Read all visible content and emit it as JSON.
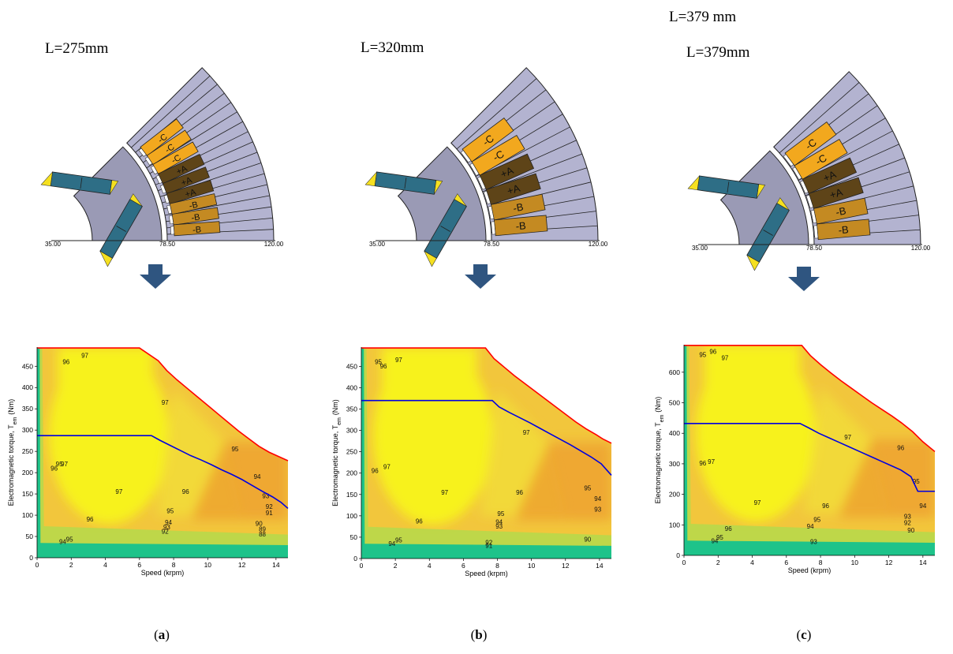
{
  "page": {
    "top_note": "L=379 mm"
  },
  "colors": {
    "rotor": "#9a9ab5",
    "stator": "#b3b3d0",
    "magnet": "#2e6e86",
    "magnet_tip": "#f5e020",
    "phase_C": "#f2a81e",
    "phase_A": "#5e4418",
    "phase_B": "#c48a22",
    "arrow": "#2f5580",
    "max_envelope": "#ff0000",
    "rated_line": "#0000e0",
    "contour_high": "#f7f21a",
    "contour_mid": "#f2c63c",
    "contour_low": "#1ec38a"
  },
  "panels": [
    {
      "id": "a",
      "caption_letter": "a",
      "length_label": "L=275mm",
      "geometry_labels": [
        "35.00",
        "78.50",
        "120.00"
      ],
      "slots": [
        {
          "label": "-C",
          "phase": "C"
        },
        {
          "label": "-C",
          "phase": "C"
        },
        {
          "label": "-C",
          "phase": "C"
        },
        {
          "label": "+A",
          "phase": "A"
        },
        {
          "label": "+A",
          "phase": "A"
        },
        {
          "label": "+A",
          "phase": "A"
        },
        {
          "label": "-B",
          "phase": "B"
        },
        {
          "label": "-B",
          "phase": "B"
        },
        {
          "label": "-B",
          "phase": "B"
        }
      ]
    },
    {
      "id": "b",
      "caption_letter": "b",
      "length_label": "L=320mm",
      "geometry_labels": [
        "35.00",
        "78.50",
        "120.00"
      ],
      "slots": [
        {
          "label": "-C",
          "phase": "C"
        },
        {
          "label": "-C",
          "phase": "C"
        },
        {
          "label": "+A",
          "phase": "A"
        },
        {
          "label": "+A",
          "phase": "A"
        },
        {
          "label": "-B",
          "phase": "B"
        },
        {
          "label": "-B",
          "phase": "B"
        }
      ]
    },
    {
      "id": "c",
      "caption_letter": "c",
      "length_label": "L=379mm",
      "geometry_labels": [
        "35.00",
        "78.50",
        "120.00"
      ],
      "slots": [
        {
          "label": "-C",
          "phase": "C"
        },
        {
          "label": "-C",
          "phase": "C"
        },
        {
          "label": "+A",
          "phase": "A"
        },
        {
          "label": "+A",
          "phase": "A"
        },
        {
          "label": "-B",
          "phase": "B"
        },
        {
          "label": "-B",
          "phase": "B"
        }
      ]
    }
  ],
  "chart_data": [
    {
      "type": "heatmap",
      "panel": "a",
      "xlabel": "Speed (krpm)",
      "ylabel": "Electromagnetic torque, T",
      "ylabel_sub": "em",
      "ylabel_unit": "(Nm)",
      "xlim": [
        0,
        14.7
      ],
      "ylim": [
        0,
        495
      ],
      "xticks": [
        0,
        2,
        4,
        6,
        8,
        10,
        12,
        14
      ],
      "yticks": [
        0,
        50,
        100,
        150,
        200,
        250,
        300,
        350,
        400,
        450
      ],
      "max_torque_envelope": {
        "x": [
          0,
          6.0,
          7.1,
          7.6,
          8.2,
          8.8,
          9.4,
          10.0,
          10.6,
          11.2,
          11.8,
          12.4,
          13.0,
          13.6,
          14.2,
          14.7
        ],
        "y": [
          493,
          493,
          463,
          440,
          418,
          398,
          378,
          358,
          338,
          318,
          298,
          280,
          262,
          248,
          237,
          228
        ]
      },
      "rated_line": {
        "x": [
          0,
          6.7,
          7.2,
          7.8,
          8.4,
          9.0,
          9.6,
          10.2,
          10.8,
          11.4,
          12.0,
          12.6,
          13.2,
          13.8,
          14.3,
          14.7
        ],
        "y": [
          287,
          287,
          276,
          264,
          252,
          240,
          230,
          219,
          207,
          196,
          184,
          170,
          156,
          143,
          130,
          116
        ]
      },
      "contour_labels": [
        {
          "text": "97",
          "x": 2.8,
          "y": 470
        },
        {
          "text": "96",
          "x": 1.7,
          "y": 455
        },
        {
          "text": "97",
          "x": 7.5,
          "y": 360
        },
        {
          "text": "95",
          "x": 11.6,
          "y": 250
        },
        {
          "text": "97",
          "x": 1.6,
          "y": 215
        },
        {
          "text": "96",
          "x": 1.0,
          "y": 205
        },
        {
          "text": "95",
          "x": 1.3,
          "y": 215
        },
        {
          "text": "94",
          "x": 12.9,
          "y": 185
        },
        {
          "text": "97",
          "x": 4.8,
          "y": 150
        },
        {
          "text": "96",
          "x": 8.7,
          "y": 150
        },
        {
          "text": "93",
          "x": 13.4,
          "y": 140
        },
        {
          "text": "92",
          "x": 13.6,
          "y": 115
        },
        {
          "text": "91",
          "x": 13.6,
          "y": 100
        },
        {
          "text": "95",
          "x": 7.8,
          "y": 105
        },
        {
          "text": "96",
          "x": 3.1,
          "y": 85
        },
        {
          "text": "94",
          "x": 7.7,
          "y": 78
        },
        {
          "text": "93",
          "x": 7.6,
          "y": 67
        },
        {
          "text": "92",
          "x": 7.5,
          "y": 57
        },
        {
          "text": "95",
          "x": 1.9,
          "y": 38
        },
        {
          "text": "94",
          "x": 1.5,
          "y": 32
        },
        {
          "text": "90",
          "x": 13.0,
          "y": 75
        },
        {
          "text": "89",
          "x": 13.2,
          "y": 62
        },
        {
          "text": "88",
          "x": 13.2,
          "y": 50
        }
      ]
    },
    {
      "type": "heatmap",
      "panel": "b",
      "xlabel": "Speed (krpm)",
      "ylabel": "Electromagnetic torque, T",
      "ylabel_sub": "em",
      "ylabel_unit": "(Nm)",
      "xlim": [
        0,
        14.7
      ],
      "ylim": [
        0,
        495
      ],
      "xticks": [
        0,
        2,
        4,
        6,
        8,
        10,
        12,
        14
      ],
      "yticks": [
        0,
        50,
        100,
        150,
        200,
        250,
        300,
        350,
        400,
        450
      ],
      "max_torque_envelope": {
        "x": [
          0,
          7.3,
          7.8,
          8.4,
          9.0,
          9.6,
          10.2,
          10.8,
          11.4,
          12.0,
          12.6,
          13.2,
          13.8,
          14.2,
          14.7
        ],
        "y": [
          493,
          493,
          468,
          448,
          428,
          410,
          392,
          374,
          356,
          338,
          320,
          304,
          290,
          280,
          270
        ]
      },
      "rated_line": {
        "x": [
          0,
          7.7,
          8.1,
          8.7,
          9.3,
          9.9,
          10.5,
          11.1,
          11.7,
          12.3,
          12.9,
          13.5,
          14.1,
          14.7
        ],
        "y": [
          370,
          370,
          355,
          342,
          330,
          318,
          305,
          292,
          279,
          266,
          252,
          238,
          222,
          195
        ]
      },
      "contour_labels": [
        {
          "text": "97",
          "x": 2.2,
          "y": 460
        },
        {
          "text": "96",
          "x": 1.3,
          "y": 445
        },
        {
          "text": "95",
          "x": 1.0,
          "y": 455
        },
        {
          "text": "97",
          "x": 9.7,
          "y": 290
        },
        {
          "text": "97",
          "x": 1.5,
          "y": 210
        },
        {
          "text": "96",
          "x": 0.8,
          "y": 200
        },
        {
          "text": "95",
          "x": 13.3,
          "y": 160
        },
        {
          "text": "97",
          "x": 4.9,
          "y": 150
        },
        {
          "text": "96",
          "x": 9.3,
          "y": 150
        },
        {
          "text": "94",
          "x": 13.9,
          "y": 135
        },
        {
          "text": "93",
          "x": 13.9,
          "y": 110
        },
        {
          "text": "96",
          "x": 3.4,
          "y": 82
        },
        {
          "text": "95",
          "x": 8.2,
          "y": 100
        },
        {
          "text": "94",
          "x": 8.1,
          "y": 80
        },
        {
          "text": "93",
          "x": 8.1,
          "y": 70
        },
        {
          "text": "95",
          "x": 2.2,
          "y": 38
        },
        {
          "text": "94",
          "x": 1.8,
          "y": 30
        },
        {
          "text": "92",
          "x": 7.5,
          "y": 32
        },
        {
          "text": "91",
          "x": 7.5,
          "y": 25
        },
        {
          "text": "90",
          "x": 13.3,
          "y": 40
        }
      ]
    },
    {
      "type": "heatmap",
      "panel": "c",
      "xlabel": "Speed (krpm)",
      "ylabel": "Electromagnetic torque, T",
      "ylabel_sub": "em",
      "ylabel_unit": "(Nm)",
      "xlim": [
        0,
        14.7
      ],
      "ylim": [
        0,
        690
      ],
      "xticks": [
        0,
        2,
        4,
        6,
        8,
        10,
        12,
        14
      ],
      "yticks": [
        0,
        100,
        200,
        300,
        400,
        500,
        600
      ],
      "max_torque_envelope": {
        "x": [
          0,
          6.9,
          7.4,
          8.0,
          8.6,
          9.2,
          9.8,
          10.4,
          11.0,
          11.6,
          12.2,
          12.8,
          13.4,
          14.0,
          14.7
        ],
        "y": [
          688,
          688,
          655,
          625,
          598,
          572,
          548,
          524,
          500,
          478,
          456,
          432,
          405,
          372,
          340
        ]
      },
      "rated_line": {
        "x": [
          0,
          6.8,
          7.3,
          7.9,
          8.5,
          9.1,
          9.7,
          10.3,
          10.9,
          11.5,
          12.1,
          12.7,
          13.3,
          13.7,
          14.7
        ],
        "y": [
          432,
          432,
          418,
          400,
          385,
          370,
          355,
          340,
          325,
          310,
          295,
          280,
          258,
          210,
          210
        ]
      },
      "contour_labels": [
        {
          "text": "97",
          "x": 2.4,
          "y": 640
        },
        {
          "text": "96",
          "x": 1.7,
          "y": 660
        },
        {
          "text": "95",
          "x": 1.1,
          "y": 650
        },
        {
          "text": "97",
          "x": 9.6,
          "y": 380
        },
        {
          "text": "96",
          "x": 12.7,
          "y": 345
        },
        {
          "text": "97",
          "x": 1.6,
          "y": 300
        },
        {
          "text": "96",
          "x": 1.1,
          "y": 295
        },
        {
          "text": "95",
          "x": 13.6,
          "y": 235
        },
        {
          "text": "94",
          "x": 14.0,
          "y": 155
        },
        {
          "text": "97",
          "x": 4.3,
          "y": 165
        },
        {
          "text": "96",
          "x": 8.3,
          "y": 155
        },
        {
          "text": "95",
          "x": 7.8,
          "y": 110
        },
        {
          "text": "94",
          "x": 7.4,
          "y": 88
        },
        {
          "text": "96",
          "x": 2.6,
          "y": 80
        },
        {
          "text": "95",
          "x": 2.1,
          "y": 52
        },
        {
          "text": "94",
          "x": 1.8,
          "y": 40
        },
        {
          "text": "93",
          "x": 13.1,
          "y": 120
        },
        {
          "text": "92",
          "x": 13.1,
          "y": 100
        },
        {
          "text": "90",
          "x": 13.3,
          "y": 75
        },
        {
          "text": "93",
          "x": 7.6,
          "y": 38
        }
      ]
    }
  ]
}
